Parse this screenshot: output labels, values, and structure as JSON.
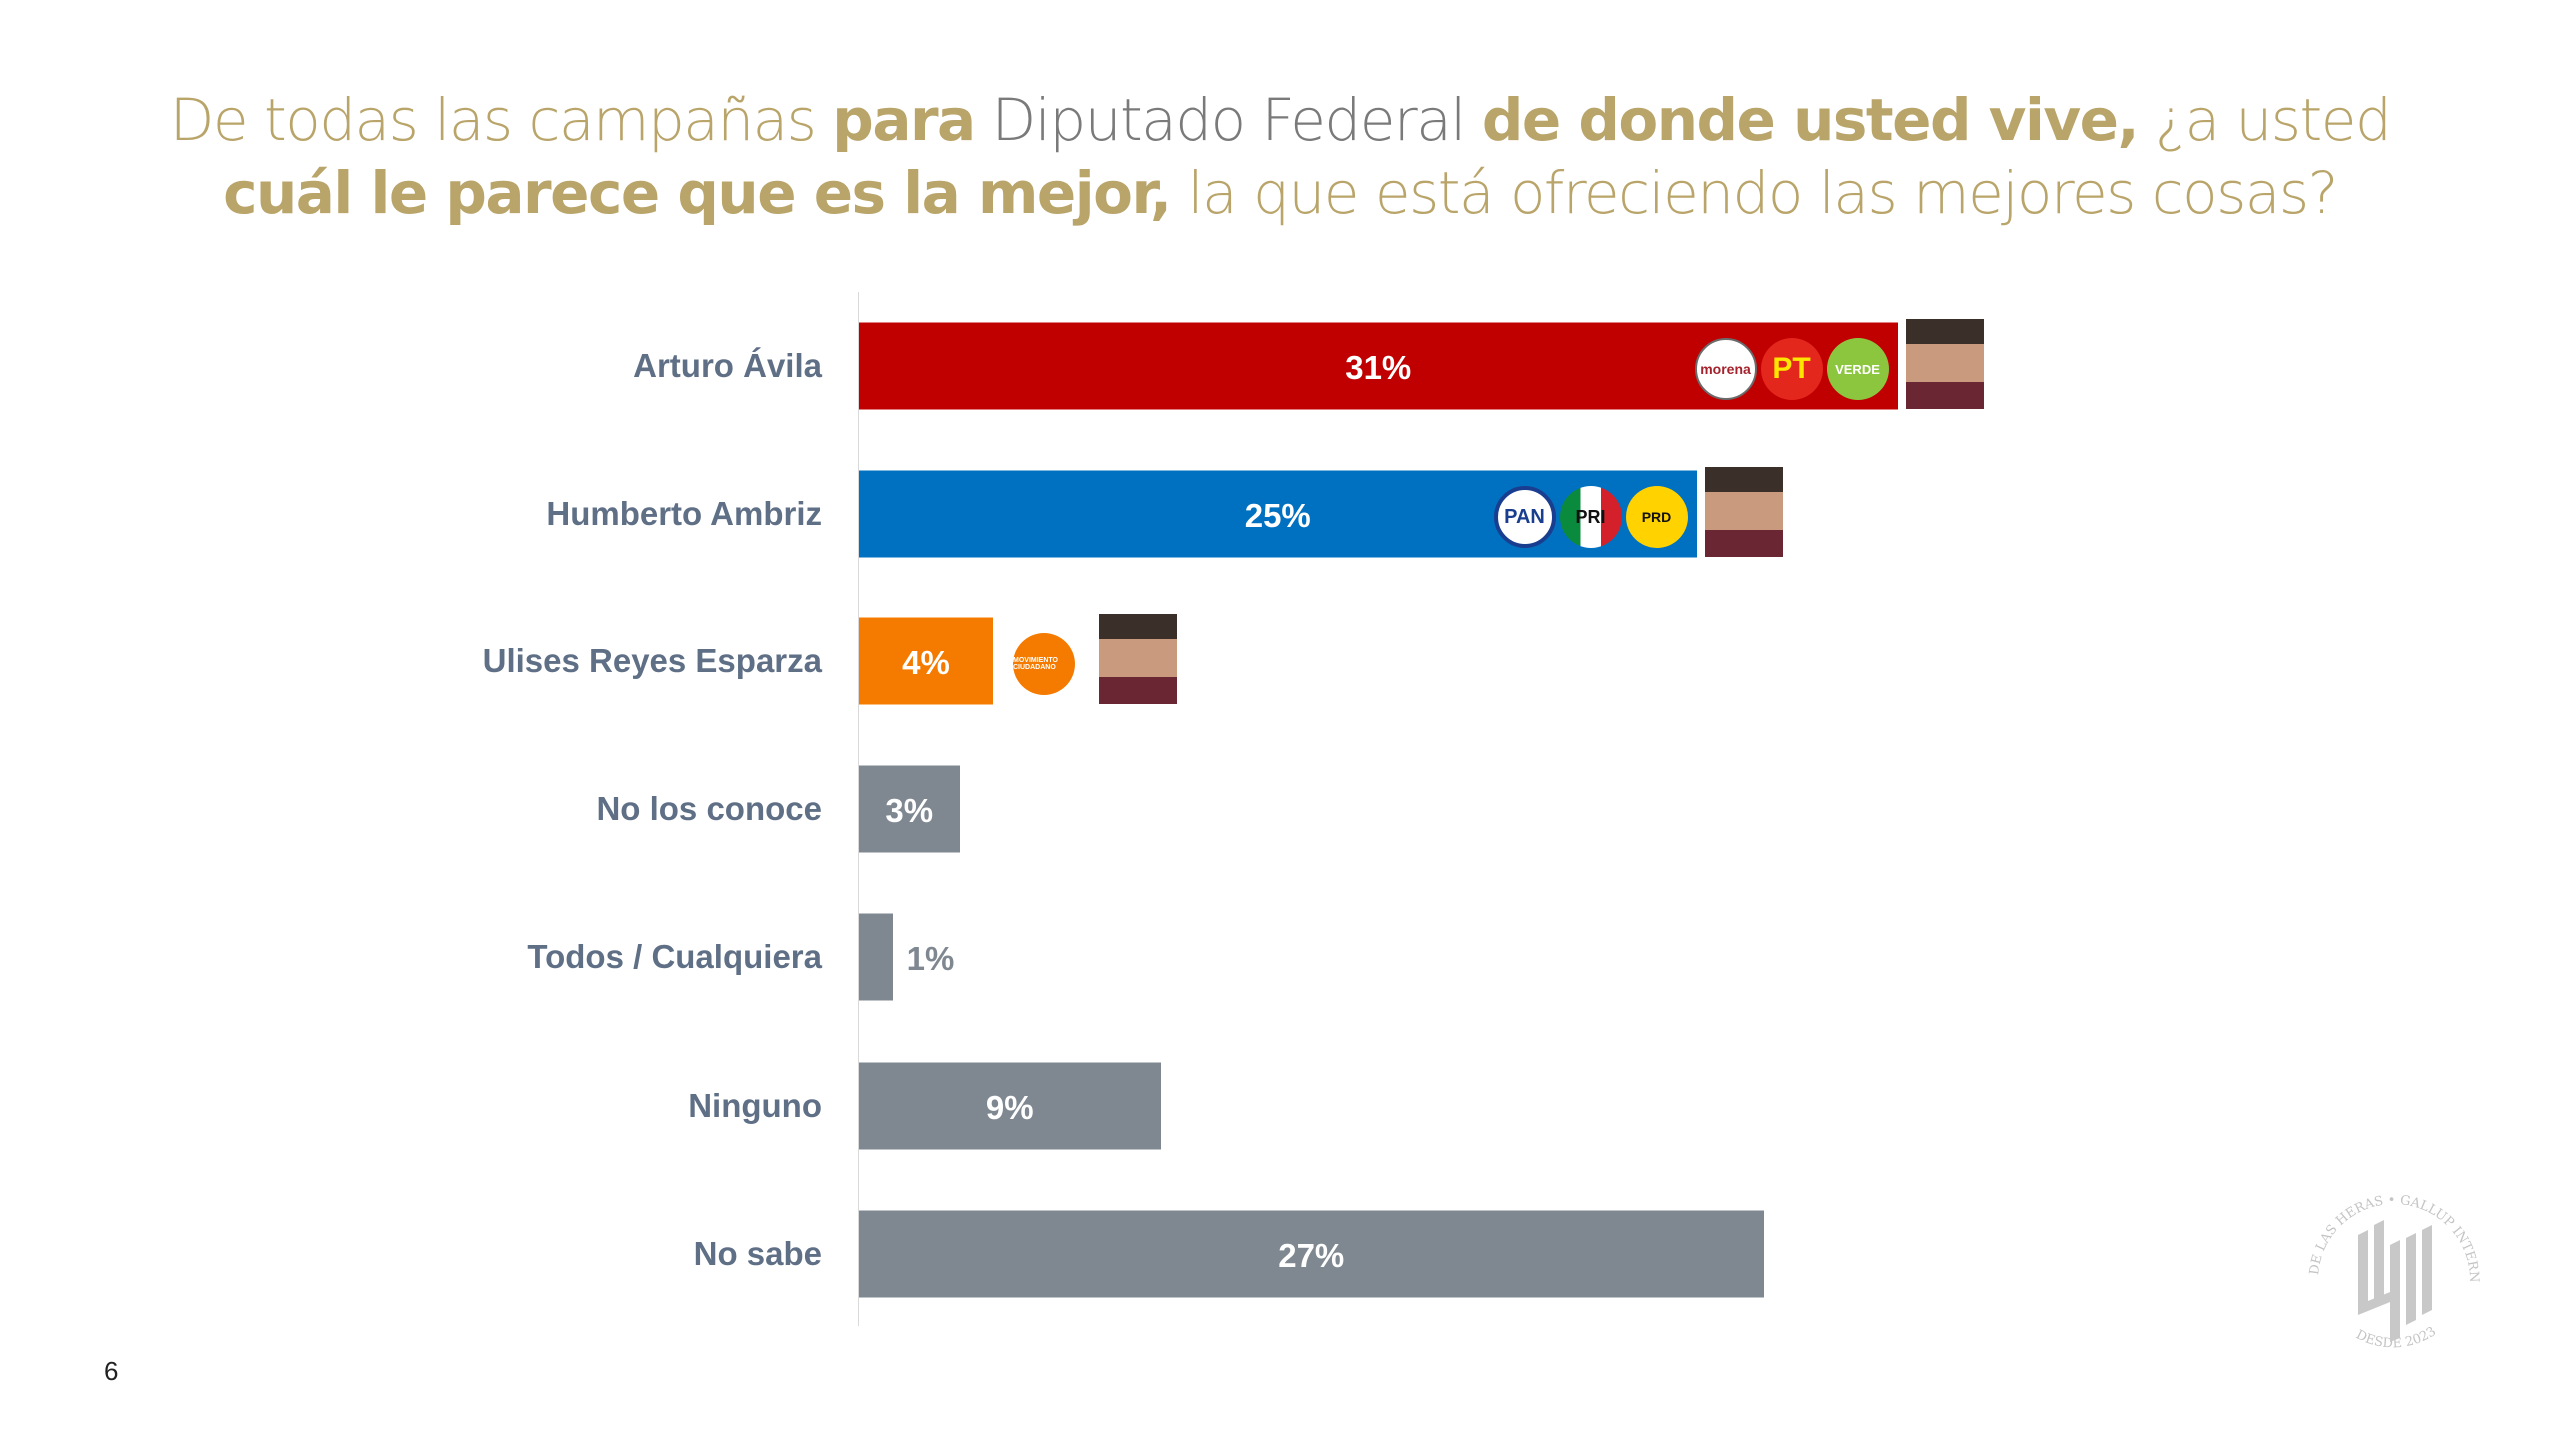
{
  "title": {
    "segments": [
      {
        "text": "De todas las campañas ",
        "style": "light"
      },
      {
        "text": "para",
        "style": "bold"
      },
      {
        "text": " Diputado Federal ",
        "style": "gray"
      },
      {
        "text": "de donde usted vive,",
        "style": "bold"
      },
      {
        "text": " ¿a usted",
        "style": "light"
      },
      {
        "text": "cuál le parece que es la mejor,",
        "style": "bold",
        "newline": true
      },
      {
        "text": " la que está ofreciendo las mejores cosas?",
        "style": "light"
      }
    ]
  },
  "chart_data": {
    "type": "bar",
    "orientation": "horizontal",
    "categories": [
      "Arturo Ávila",
      "Humberto Ambriz",
      "Ulises Reyes Esparza",
      "No los conoce",
      "Todos / Cualquiera",
      "Ninguno",
      "No sabe"
    ],
    "values": [
      31,
      25,
      4,
      3,
      1,
      9,
      27
    ],
    "value_labels": [
      "31%",
      "25%",
      "4%",
      "3%",
      "1%",
      "9%",
      "27%"
    ],
    "colors": [
      "#c00000",
      "#0070c0",
      "#f47b00",
      "#7f8891",
      "#7f8891",
      "#7f8891",
      "#7f8891"
    ],
    "party_logos": [
      [
        "morena",
        "PT",
        "VERDE"
      ],
      [
        "PAN",
        "PRI",
        "PRD"
      ],
      [
        "MOVIMIENTO CIUDADANO"
      ],
      [],
      [],
      [],
      []
    ],
    "has_photo": [
      true,
      true,
      true,
      false,
      false,
      false,
      false
    ],
    "grid": false,
    "legend": "none"
  },
  "page_number": "6",
  "seal": {
    "text_top": "DE LAS HERAS • GALLUP INTERNATIONAL MEMBER",
    "text_bottom": "DESDE 2023"
  }
}
